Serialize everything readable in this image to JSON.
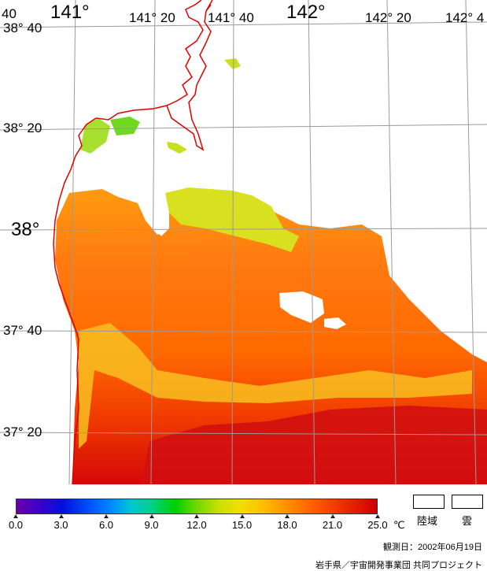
{
  "map": {
    "longitude_labels": [
      {
        "text": "141°",
        "big": true
      },
      {
        "text": "141° 20",
        "big": false
      },
      {
        "text": "141° 40",
        "big": false
      },
      {
        "text": "142°",
        "big": true
      },
      {
        "text": "142° 20",
        "big": false
      },
      {
        "text": "142° 4",
        "big": false
      }
    ],
    "latitude_labels": [
      {
        "text": "38° 40",
        "big": false
      },
      {
        "text": "38° 20",
        "big": false
      },
      {
        "text": "38°",
        "big": true
      },
      {
        "text": "37° 40",
        "big": false
      },
      {
        "text": "37° 20",
        "big": false
      }
    ],
    "corner_label": "40"
  },
  "colors": {
    "coastline": "#e00000",
    "grid": "#9a9a9a",
    "land": "#ffffff",
    "cloud": "#ffffff"
  },
  "colorbar": {
    "unit": "℃",
    "ticks": [
      "0.0",
      "3.0",
      "6.0",
      "9.0",
      "12.0",
      "15.0",
      "18.0",
      "21.0",
      "25.0"
    ],
    "min": 0,
    "max": 25
  },
  "legend": {
    "land_label": "陸域",
    "cloud_label": "雲"
  },
  "footer": {
    "observation_date": "観測日：2002年06月19日",
    "credit": "岩手県／宇宙開発事業団 共同プロジェクト"
  }
}
